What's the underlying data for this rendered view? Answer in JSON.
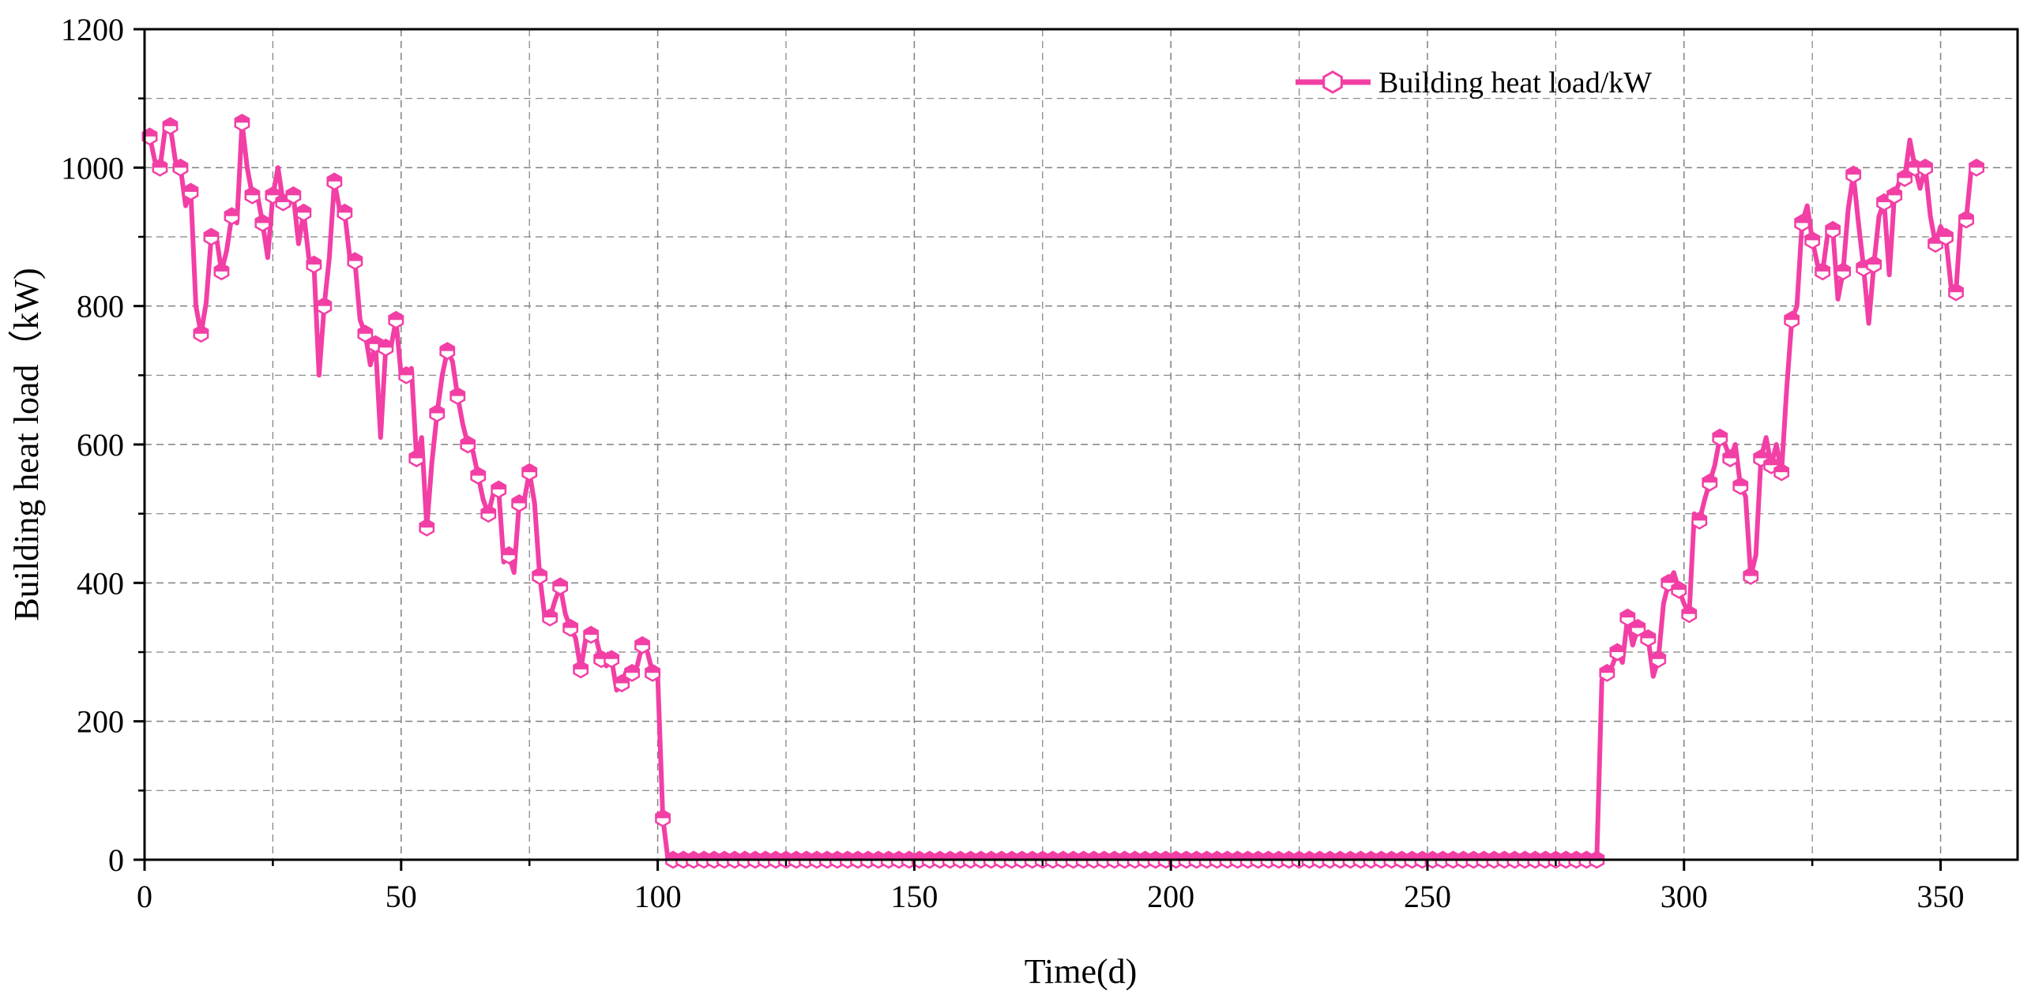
{
  "chart_data": {
    "type": "line",
    "title": "",
    "xlabel": "Time(d)",
    "ylabel": "Building heat load（kW)",
    "xlim": [
      0,
      365
    ],
    "ylim": [
      0,
      1200
    ],
    "xticks": [
      0,
      50,
      100,
      150,
      200,
      250,
      300,
      350
    ],
    "yticks": [
      0,
      200,
      400,
      600,
      800,
      1000,
      1200
    ],
    "xtick_labels": [
      "0",
      "50",
      "100",
      "150",
      "200",
      "250",
      "300",
      "350"
    ],
    "ytick_labels": [
      "0",
      "200",
      "400",
      "600",
      "800",
      "1000",
      "1200"
    ],
    "grid": true,
    "legend_position": "top-right",
    "series": [
      {
        "name": "Building heat load/kW",
        "color": "#f23fa5",
        "marker": "hexagon",
        "x_start": 1,
        "x_step": 1,
        "values": [
          1045,
          1010,
          1000,
          1055,
          1060,
          1010,
          1000,
          945,
          965,
          800,
          760,
          805,
          900,
          900,
          850,
          880,
          930,
          920,
          1065,
          1000,
          960,
          960,
          920,
          870,
          960,
          1000,
          950,
          945,
          960,
          890,
          935,
          870,
          860,
          700,
          800,
          870,
          980,
          940,
          935,
          870,
          865,
          780,
          760,
          715,
          745,
          610,
          740,
          740,
          780,
          700,
          700,
          710,
          580,
          610,
          480,
          575,
          645,
          700,
          735,
          720,
          670,
          630,
          600,
          590,
          555,
          520,
          500,
          530,
          535,
          430,
          440,
          415,
          515,
          520,
          560,
          515,
          410,
          350,
          350,
          375,
          395,
          355,
          335,
          320,
          275,
          320,
          325,
          320,
          290,
          280,
          290,
          245,
          255,
          275,
          270,
          280,
          310,
          300,
          270,
          265,
          60,
          0,
          0,
          0,
          0,
          0,
          0,
          0,
          0,
          0,
          0,
          0,
          0,
          0,
          0,
          0,
          0,
          0,
          0,
          0,
          0,
          0,
          0,
          0,
          0,
          0,
          0,
          0,
          0,
          0,
          0,
          0,
          0,
          0,
          0,
          0,
          0,
          0,
          0,
          0,
          0,
          0,
          0,
          0,
          0,
          0,
          0,
          0,
          0,
          0,
          0,
          0,
          0,
          0,
          0,
          0,
          0,
          0,
          0,
          0,
          0,
          0,
          0,
          0,
          0,
          0,
          0,
          0,
          0,
          0,
          0,
          0,
          0,
          0,
          0,
          0,
          0,
          0,
          0,
          0,
          0,
          0,
          0,
          0,
          0,
          0,
          0,
          0,
          0,
          0,
          0,
          0,
          0,
          0,
          0,
          0,
          0,
          0,
          0,
          0,
          0,
          0,
          0,
          0,
          0,
          0,
          0,
          0,
          0,
          0,
          0,
          0,
          0,
          0,
          0,
          0,
          0,
          0,
          0,
          0,
          0,
          0,
          0,
          0,
          0,
          0,
          0,
          0,
          0,
          0,
          0,
          0,
          0,
          0,
          0,
          0,
          0,
          0,
          0,
          0,
          0,
          0,
          0,
          0,
          0,
          0,
          0,
          0,
          0,
          0,
          0,
          0,
          0,
          0,
          0,
          0,
          0,
          0,
          0,
          0,
          0,
          0,
          0,
          0,
          0,
          0,
          0,
          0,
          0,
          0,
          0,
          0,
          0,
          0,
          0,
          0,
          0,
          0,
          0,
          0,
          0,
          0,
          0,
          260,
          270,
          280,
          300,
          285,
          350,
          310,
          335,
          325,
          320,
          265,
          290,
          370,
          400,
          415,
          390,
          370,
          355,
          500,
          490,
          520,
          545,
          570,
          610,
          600,
          580,
          600,
          540,
          525,
          410,
          440,
          580,
          610,
          570,
          600,
          560,
          680,
          780,
          800,
          920,
          945,
          895,
          860,
          850,
          905,
          910,
          810,
          850,
          940,
          990,
          920,
          855,
          775,
          860,
          930,
          950,
          845,
          960,
          980,
          985,
          1040,
          1000,
          970,
          1000,
          930,
          890,
          915,
          900,
          830,
          820,
          930,
          925,
          1000,
          1000
        ]
      }
    ]
  }
}
